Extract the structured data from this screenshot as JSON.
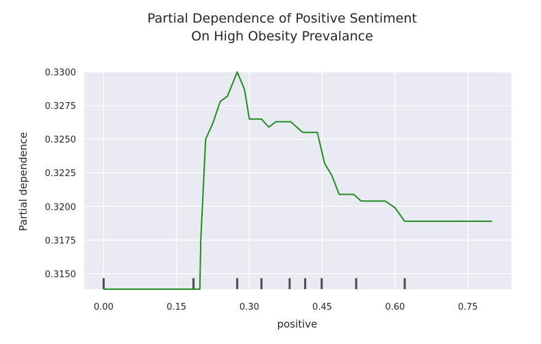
{
  "chart_data": {
    "type": "line",
    "title": [
      "Partial Dependence of Positive Sentiment",
      "On High Obesity Prevalance"
    ],
    "xlabel": "positive",
    "ylabel": "Partial dependence",
    "xlim": [
      -0.04,
      0.84
    ],
    "ylim": [
      0.31385,
      0.33
    ],
    "x_ticks": [
      "0.00",
      "0.15",
      "0.30",
      "0.45",
      "0.60",
      "0.75"
    ],
    "x_tick_values": [
      0.0,
      0.15,
      0.3,
      0.45,
      0.6,
      0.75
    ],
    "y_ticks": [
      "0.3150",
      "0.3175",
      "0.3200",
      "0.3225",
      "0.3250",
      "0.3275",
      "0.3300"
    ],
    "y_tick_values": [
      0.315,
      0.3175,
      0.32,
      0.3225,
      0.325,
      0.3275,
      0.33
    ],
    "grid": true,
    "background_color": "#eaeaf2",
    "line_color": "#228b22",
    "rug_color": "#4a4a4a",
    "rug_x": [
      0.0,
      0.185,
      0.275,
      0.325,
      0.383,
      0.415,
      0.449,
      0.52,
      0.62
    ],
    "series": [
      {
        "x": [
          0.0,
          0.198,
          0.2,
          0.21,
          0.225,
          0.24,
          0.255,
          0.275,
          0.29,
          0.3,
          0.31,
          0.325,
          0.34,
          0.355,
          0.37,
          0.385,
          0.41,
          0.425,
          0.44,
          0.455,
          0.47,
          0.485,
          0.5,
          0.515,
          0.53,
          0.545,
          0.56,
          0.58,
          0.6,
          0.62,
          0.65,
          0.7,
          0.75,
          0.8
        ],
        "y": [
          0.31385,
          0.31385,
          0.3175,
          0.325,
          0.3262,
          0.3278,
          0.3282,
          0.33,
          0.3287,
          0.3265,
          0.3265,
          0.3265,
          0.3259,
          0.3263,
          0.3263,
          0.3263,
          0.3255,
          0.3255,
          0.3255,
          0.3232,
          0.3223,
          0.3209,
          0.3209,
          0.3209,
          0.3204,
          0.3204,
          0.3204,
          0.3204,
          0.3199,
          0.3189,
          0.3189,
          0.3189,
          0.3189,
          0.3189
        ]
      }
    ]
  }
}
